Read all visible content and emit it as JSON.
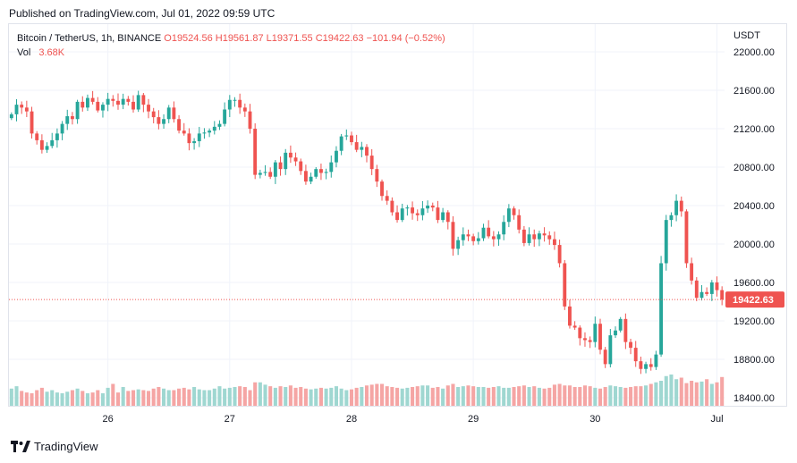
{
  "published": "Published on TradingView.com, Jul 01, 2022 09:59 UTC",
  "legend": {
    "symbol": "Bitcoin / TetherUS, 1h, BINANCE",
    "ohlc": "O19524.56  H19561.87  L19371.55  C19422.63  −101.94 (−0.52%)",
    "vol_label": "Vol",
    "vol_value": "3.68K"
  },
  "currency": "USDT",
  "footer": {
    "brand": "TradingView",
    "logo_icon": "tradingview-logo-icon"
  },
  "colors": {
    "up": "#26a69a",
    "down": "#ef5350",
    "vol_up": "#9fd7d1",
    "vol_down": "#f5a5a4",
    "grid": "#f0f3fa"
  },
  "chart_data": {
    "type": "candlestick",
    "symbol": "BTCUSDT",
    "interval": "1h",
    "ylim": [
      18250,
      22100
    ],
    "y_ticks": [
      22000,
      21600,
      21200,
      20800,
      20400,
      20000,
      19600,
      19200,
      18800,
      18400
    ],
    "x_ticks": [
      {
        "label": "26",
        "index": 19
      },
      {
        "label": "27",
        "index": 43
      },
      {
        "label": "28",
        "index": 67
      },
      {
        "label": "29",
        "index": 91
      },
      {
        "label": "30",
        "index": 115
      },
      {
        "label": "Jul",
        "index": 139
      }
    ],
    "last_price": 19422.63,
    "last_price_label": "19422.63",
    "closes": [
      21350,
      21450,
      21420,
      21380,
      21150,
      21080,
      20980,
      21020,
      21080,
      21150,
      21250,
      21330,
      21300,
      21480,
      21420,
      21520,
      21480,
      21390,
      21450,
      21510,
      21490,
      21450,
      21510,
      21480,
      21400,
      21550,
      21450,
      21380,
      21320,
      21250,
      21300,
      21420,
      21300,
      21180,
      21150,
      21050,
      21070,
      21150,
      21160,
      21180,
      21220,
      21250,
      21400,
      21500,
      21500,
      21420,
      21380,
      21200,
      20720,
      20740,
      20750,
      20700,
      20850,
      20780,
      20950,
      20900,
      20860,
      20760,
      20650,
      20700,
      20780,
      20740,
      20750,
      20850,
      20970,
      21120,
      21130,
      21060,
      20980,
      21010,
      20920,
      20780,
      20650,
      20500,
      20450,
      20330,
      20250,
      20370,
      20380,
      20320,
      20300,
      20370,
      20400,
      20380,
      20250,
      20330,
      20230,
      19950,
      20040,
      20100,
      20080,
      20030,
      20060,
      20170,
      20080,
      20050,
      20100,
      20230,
      20370,
      20300,
      20150,
      20010,
      20100,
      20050,
      20110,
      20090,
      20050,
      19990,
      19800,
      19350,
      19150,
      19130,
      19020,
      19000,
      18980,
      19170,
      18900,
      18750,
      19050,
      19100,
      19220,
      18980,
      18920,
      18780,
      18700,
      18750,
      18720,
      18850,
      19800,
      20250,
      20300,
      20450,
      20340,
      19800,
      19620,
      19440,
      19500,
      19480,
      19600,
      19520,
      19422.63
    ],
    "volumes": [
      2.2,
      2.5,
      1.9,
      1.7,
      1.6,
      2.0,
      2.3,
      1.8,
      2.0,
      1.7,
      1.6,
      1.8,
      2.0,
      2.2,
      1.9,
      1.6,
      1.7,
      2.0,
      1.6,
      2.3,
      2.8,
      1.7,
      2.4,
      1.9,
      2.0,
      2.1,
      2.0,
      1.9,
      2.2,
      2.4,
      2.2,
      2.0,
      2.0,
      2.2,
      2.3,
      2.1,
      2.4,
      2.1,
      2.0,
      2.0,
      2.2,
      2.5,
      2.2,
      2.3,
      2.4,
      2.5,
      2.4,
      2.0,
      3.0,
      3.0,
      2.7,
      2.5,
      2.3,
      2.5,
      2.4,
      2.6,
      2.3,
      2.4,
      2.2,
      2.1,
      2.2,
      2.3,
      2.2,
      2.3,
      2.5,
      2.2,
      2.0,
      2.1,
      2.3,
      2.4,
      2.6,
      2.7,
      2.8,
      2.8,
      2.5,
      2.4,
      2.3,
      2.2,
      2.3,
      2.4,
      2.5,
      2.6,
      2.6,
      2.3,
      2.4,
      2.2,
      2.6,
      2.8,
      2.4,
      2.5,
      2.6,
      2.5,
      2.4,
      2.4,
      2.3,
      2.4,
      2.5,
      2.3,
      2.3,
      2.4,
      2.5,
      2.6,
      2.4,
      2.5,
      2.3,
      2.2,
      2.3,
      2.7,
      2.8,
      2.6,
      2.6,
      2.4,
      2.4,
      2.6,
      2.5,
      2.3,
      2.2,
      2.4,
      2.6,
      2.5,
      2.4,
      2.3,
      2.4,
      2.5,
      2.5,
      2.6,
      2.8,
      3.0,
      3.2,
      3.8,
      4.0,
      3.4,
      3.6,
      2.9,
      3.2,
      3.0,
      3.1,
      3.4,
      2.8,
      3.0,
      3.68
    ]
  }
}
